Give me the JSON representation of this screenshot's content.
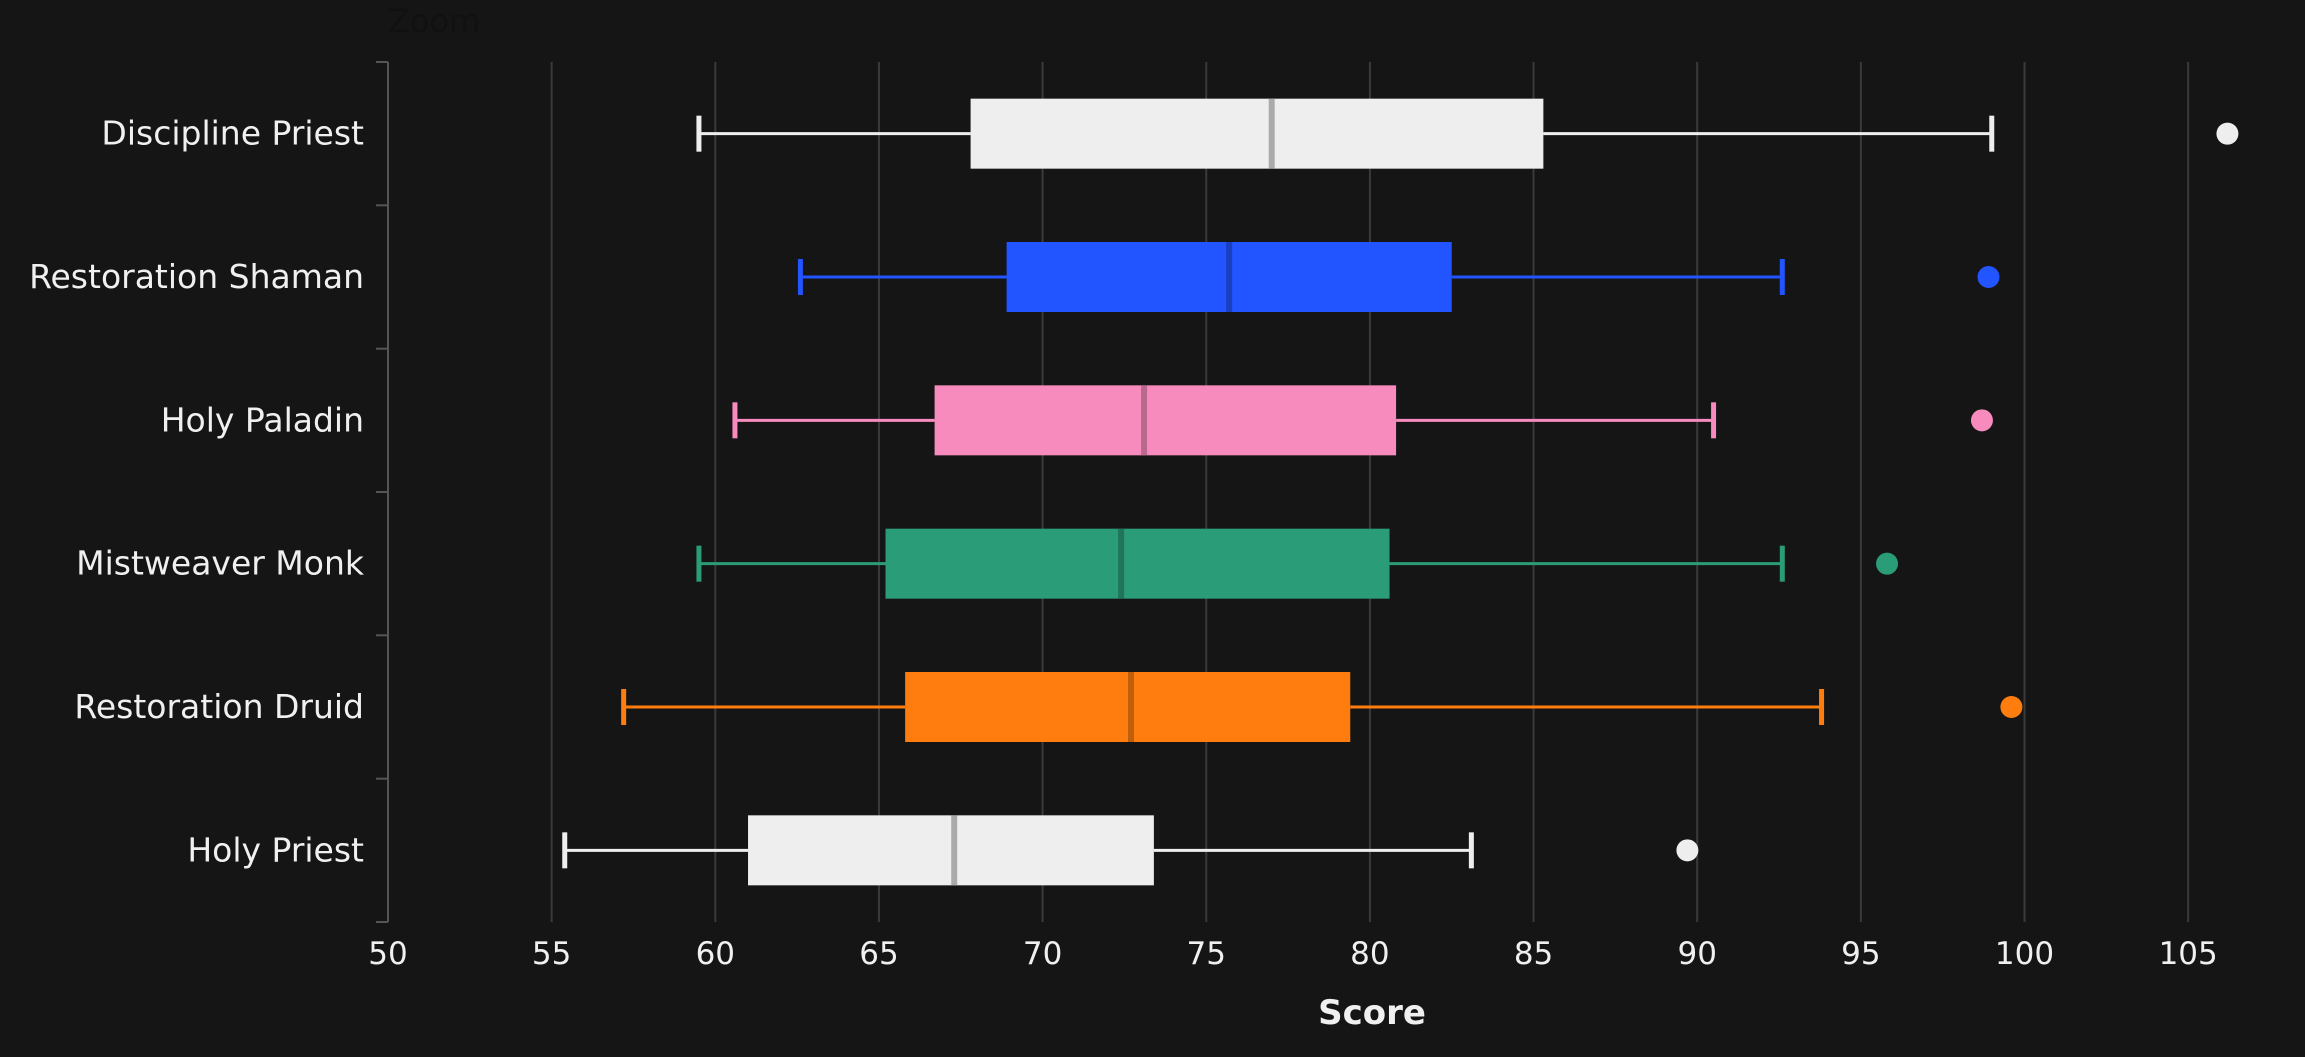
{
  "zoom_label": "Zoom",
  "chart_data": {
    "type": "boxplot",
    "orientation": "horizontal",
    "xlabel": "Score",
    "ylabel": "",
    "xlim": [
      50,
      107
    ],
    "x_ticks": [
      50,
      55,
      60,
      65,
      70,
      75,
      80,
      85,
      90,
      95,
      100,
      105
    ],
    "grid": "vertical",
    "series": [
      {
        "name": "Discipline Priest",
        "color": "#eeeeee",
        "median_color": "#aaaaaa",
        "whisker_low": 59.5,
        "q1": 67.8,
        "median": 77.0,
        "q3": 85.3,
        "whisker_high": 99.0,
        "outliers": [
          106.2
        ]
      },
      {
        "name": "Restoration Shaman",
        "color": "#2255ff",
        "median_color": "#1a3fbf",
        "whisker_low": 62.6,
        "q1": 68.9,
        "median": 75.7,
        "q3": 82.5,
        "whisker_high": 92.6,
        "outliers": [
          98.9
        ]
      },
      {
        "name": "Holy Paladin",
        "color": "#f78bbd",
        "median_color": "#b9688e",
        "whisker_low": 60.6,
        "q1": 66.7,
        "median": 73.1,
        "q3": 80.8,
        "whisker_high": 90.5,
        "outliers": [
          98.7
        ]
      },
      {
        "name": "Mistweaver Monk",
        "color": "#2b9c78",
        "median_color": "#207559",
        "whisker_low": 59.5,
        "q1": 65.2,
        "median": 72.4,
        "q3": 80.6,
        "whisker_high": 92.6,
        "outliers": [
          95.8
        ]
      },
      {
        "name": "Restoration Druid",
        "color": "#ff7d0f",
        "median_color": "#bf5e0b",
        "whisker_low": 57.2,
        "q1": 65.8,
        "median": 72.7,
        "q3": 79.4,
        "whisker_high": 93.8,
        "outliers": [
          99.6
        ]
      },
      {
        "name": "Holy Priest",
        "color": "#eeeeee",
        "median_color": "#aaaaaa",
        "whisker_low": 55.4,
        "q1": 61.0,
        "median": 67.3,
        "q3": 73.4,
        "whisker_high": 83.1,
        "outliers": [
          89.7
        ]
      }
    ]
  }
}
